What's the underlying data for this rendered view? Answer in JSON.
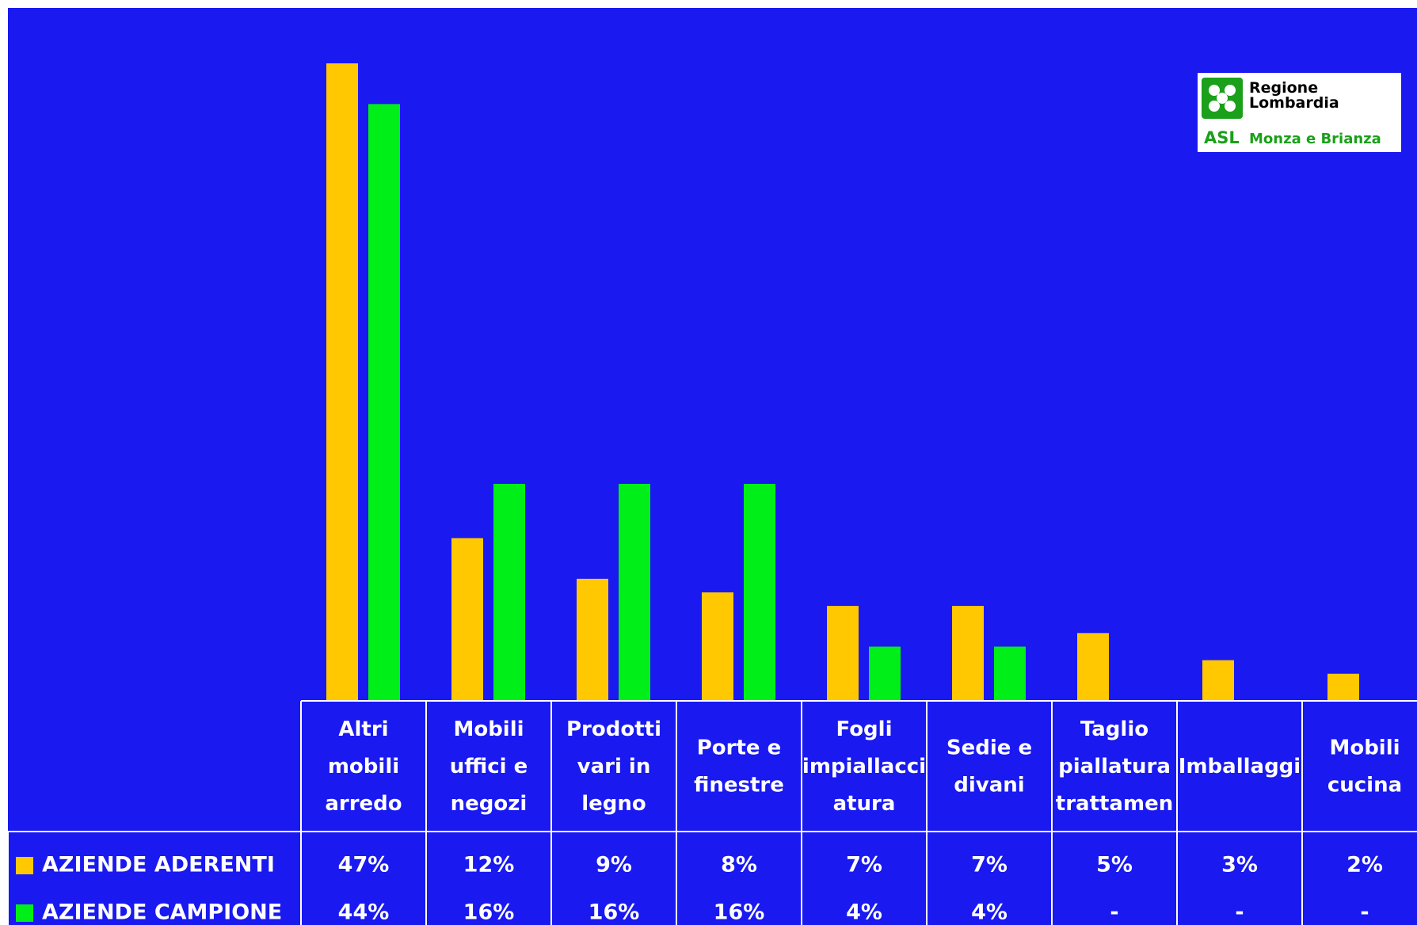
{
  "logo": {
    "line1": "Regione",
    "line2": "Lombardia",
    "asl": "ASL",
    "area": "Monza e Brianza"
  },
  "colors": {
    "background": "#1919f0",
    "series1": "#ffc800",
    "series2": "#00ef18",
    "table_text": "#ffffff",
    "grid": "#ffffff"
  },
  "chart_data": {
    "type": "bar",
    "categories": [
      [
        "Altri",
        "mobili",
        "arredo"
      ],
      [
        "Mobili",
        "uffici e",
        "negozi"
      ],
      [
        "Prodotti",
        "vari in",
        "legno"
      ],
      [
        "Porte e",
        "finestre"
      ],
      [
        "Fogli",
        "impiallacci",
        "atura"
      ],
      [
        "Sedie e",
        "divani"
      ],
      [
        "Taglio",
        "piallatura",
        "trattamen"
      ],
      [
        "Imballaggi"
      ],
      [
        "Mobili",
        "cucina"
      ]
    ],
    "series": [
      {
        "name": "AZIENDE ADERENTI",
        "values": [
          47,
          12,
          9,
          8,
          7,
          7,
          5,
          3,
          2
        ],
        "labels": [
          "47%",
          "12%",
          "9%",
          "8%",
          "7%",
          "7%",
          "5%",
          "3%",
          "2%"
        ]
      },
      {
        "name": "AZIENDE CAMPIONE",
        "values": [
          44,
          16,
          16,
          16,
          4,
          4,
          null,
          null,
          null
        ],
        "labels": [
          "44%",
          "16%",
          "16%",
          "16%",
          "4%",
          "4%",
          "-",
          "-",
          "-"
        ]
      }
    ],
    "ylim": [
      0,
      47
    ],
    "legend": "data-table",
    "grid": false
  }
}
